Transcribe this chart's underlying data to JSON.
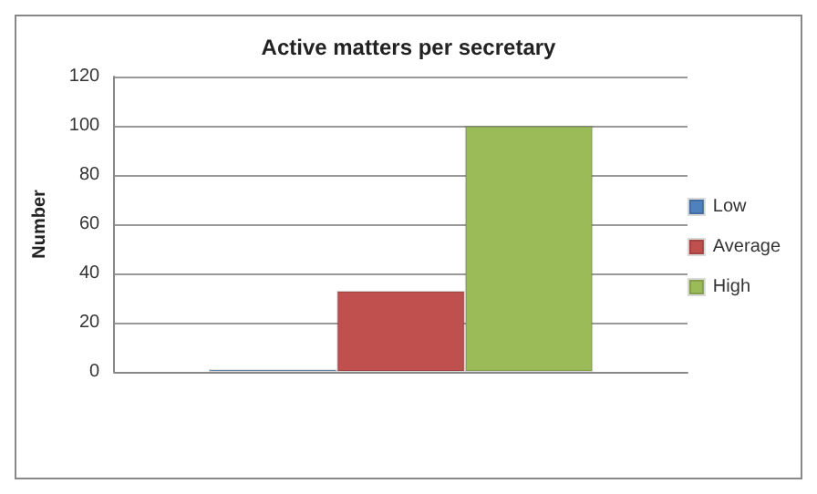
{
  "chart_data": {
    "type": "bar",
    "title": "Active matters per secretary",
    "ylabel": "Number",
    "categories": [
      null
    ],
    "series": [
      {
        "name": "Low",
        "color": "#4f81bd",
        "values": [
          1
        ]
      },
      {
        "name": "Average",
        "color": "#c0504d",
        "values": [
          33
        ]
      },
      {
        "name": "High",
        "color": "#9bbb59",
        "values": [
          100
        ]
      }
    ],
    "ylim": [
      0,
      120
    ],
    "yticks": [
      0,
      20,
      40,
      60,
      80,
      100,
      120
    ],
    "grid": "y",
    "legend": "right"
  }
}
